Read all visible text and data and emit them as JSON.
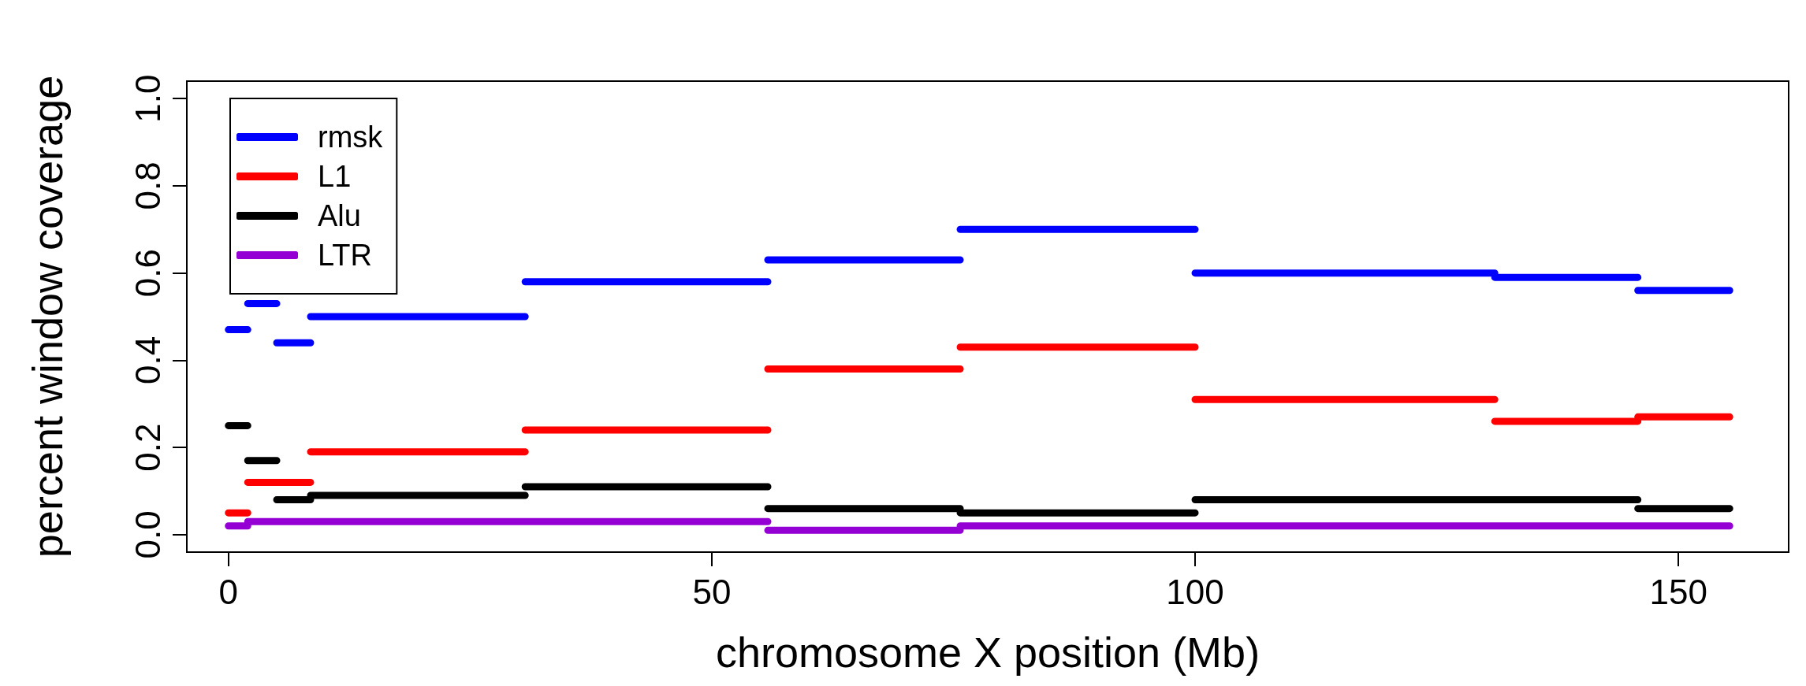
{
  "chart_data": {
    "type": "line",
    "xlabel": "chromosome X position (Mb)",
    "ylabel": "percent window coverage",
    "xlim": [
      -4.3,
      161.4
    ],
    "xticks": [
      0,
      50,
      100,
      150
    ],
    "ylim": [
      -0.04,
      1.04
    ],
    "yticks": [
      {
        "value": 0,
        "label": "0.0"
      },
      0.2,
      0.4,
      0.6,
      0.8,
      {
        "value": 1,
        "label": "1.0"
      }
    ],
    "grid": false,
    "legend": "top left",
    "marker": "none",
    "line_style": "solid",
    "series": [
      {
        "name": "rmsk",
        "color": "#0000ff",
        "x": [
          0,
          2,
          null,
          2,
          5,
          null,
          5,
          8.5,
          null,
          8.5,
          30.7,
          null,
          30.7,
          55.8,
          null,
          55.8,
          75.7,
          null,
          75.7,
          100,
          null,
          100,
          131,
          null,
          131,
          145.8,
          null,
          145.8,
          155.3
        ],
        "values": [
          0.47,
          0.47,
          null,
          0.53,
          0.53,
          null,
          0.44,
          0.44,
          null,
          0.5,
          0.5,
          null,
          0.58,
          0.58,
          null,
          0.63,
          0.63,
          null,
          0.7,
          0.7,
          null,
          0.6,
          0.6,
          null,
          0.59,
          0.59,
          null,
          0.56,
          0.56
        ]
      },
      {
        "name": "L1",
        "color": "#ff0000",
        "x": [
          0,
          2,
          null,
          2,
          5,
          null,
          5,
          8.5,
          null,
          8.5,
          30.7,
          null,
          30.7,
          55.8,
          null,
          55.8,
          75.7,
          null,
          75.7,
          100,
          null,
          100,
          131,
          null,
          131,
          145.8,
          null,
          145.8,
          155.3
        ],
        "values": [
          0.05,
          0.05,
          null,
          0.12,
          0.12,
          null,
          0.12,
          0.12,
          null,
          0.19,
          0.19,
          null,
          0.24,
          0.24,
          null,
          0.38,
          0.38,
          null,
          0.43,
          0.43,
          null,
          0.31,
          0.31,
          null,
          0.26,
          0.26,
          null,
          0.27,
          0.27
        ]
      },
      {
        "name": "Alu",
        "color": "#000000",
        "x": [
          0,
          2,
          null,
          2,
          5,
          null,
          5,
          8.5,
          null,
          8.5,
          30.7,
          null,
          30.7,
          55.8,
          null,
          55.8,
          75.7,
          null,
          75.7,
          100,
          null,
          100,
          131,
          null,
          131,
          145.8,
          null,
          145.8,
          155.3
        ],
        "values": [
          0.25,
          0.25,
          null,
          0.17,
          0.17,
          null,
          0.08,
          0.08,
          null,
          0.09,
          0.09,
          null,
          0.11,
          0.11,
          null,
          0.06,
          0.06,
          null,
          0.05,
          0.05,
          null,
          0.08,
          0.08,
          null,
          0.08,
          0.08,
          null,
          0.06,
          0.06
        ]
      },
      {
        "name": "LTR",
        "color": "#9400d3",
        "x": [
          0,
          2,
          null,
          2,
          5,
          null,
          5,
          8.5,
          null,
          8.5,
          30.7,
          null,
          30.7,
          55.8,
          null,
          55.8,
          75.7,
          null,
          75.7,
          100,
          null,
          100,
          131,
          null,
          131,
          145.8,
          null,
          145.8,
          155.3
        ],
        "values": [
          0.02,
          0.02,
          null,
          0.03,
          0.03,
          null,
          0.03,
          0.03,
          null,
          0.03,
          0.03,
          null,
          0.03,
          0.03,
          null,
          0.01,
          0.01,
          null,
          0.02,
          0.02,
          null,
          0.02,
          0.02,
          null,
          0.02,
          0.02,
          null,
          0.02,
          0.02
        ]
      }
    ]
  }
}
